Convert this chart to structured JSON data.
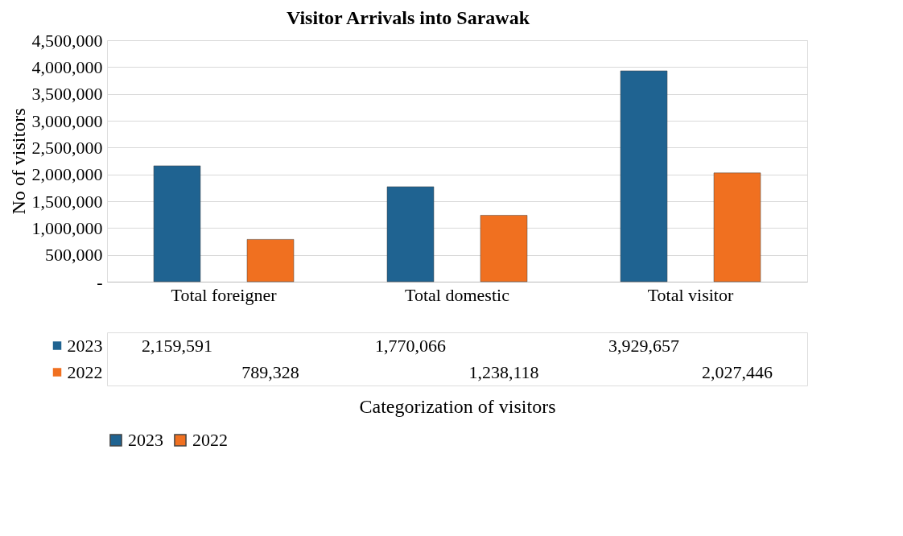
{
  "chart_data": {
    "type": "bar",
    "title": "Visitor Arrivals into Sarawak",
    "xlabel": "Categorization of visitors",
    "ylabel": "No of visitors",
    "categories": [
      "Total foreigner",
      "Total domestic",
      "Total visitor"
    ],
    "series": [
      {
        "name": "2023",
        "color": "#1f6391",
        "values": [
          2159591,
          1770066,
          3929657
        ],
        "value_labels": [
          "2,159,591",
          "1,770,066",
          "3,929,657"
        ]
      },
      {
        "name": "2022",
        "color": "#f07020",
        "values": [
          789328,
          1238118,
          2027446
        ],
        "value_labels": [
          "789,328",
          "1,238,118",
          "2,027,446"
        ]
      }
    ],
    "ylim": [
      0,
      4500000
    ],
    "yticks": [
      {
        "value": 0,
        "label": "-"
      },
      {
        "value": 500000,
        "label": "500,000"
      },
      {
        "value": 1000000,
        "label": "1,000,000"
      },
      {
        "value": 1500000,
        "label": "1,500,000"
      },
      {
        "value": 2000000,
        "label": "2,000,000"
      },
      {
        "value": 2500000,
        "label": "2,500,000"
      },
      {
        "value": 3000000,
        "label": "3,000,000"
      },
      {
        "value": 3500000,
        "label": "3,500,000"
      },
      {
        "value": 4000000,
        "label": "4,000,000"
      },
      {
        "value": 4500000,
        "label": "4,500,000"
      }
    ],
    "grid": "y",
    "legend": "bottom"
  }
}
